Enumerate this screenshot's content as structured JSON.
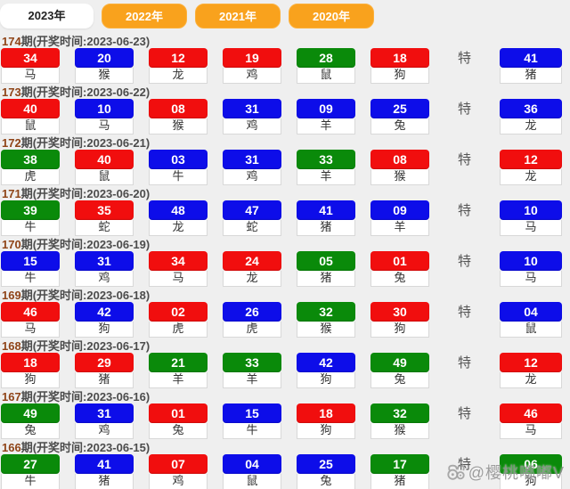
{
  "tabs": [
    {
      "label": "2023年",
      "active": true
    },
    {
      "label": "2022年",
      "active": false
    },
    {
      "label": "2021年",
      "active": false
    },
    {
      "label": "2020年",
      "active": false
    }
  ],
  "special_label": "特",
  "watermark": {
    "handle": "@樱桃嘟嘟V",
    "icon": "weibo-face-icon"
  },
  "colors": {
    "red": "#f10e0e",
    "blue": "#0d0de9",
    "green": "#0a8a0a",
    "tab_orange": "#f9a21d"
  },
  "draws": [
    {
      "period_num": "174",
      "period_suffix": "期(开奖时间:2023-06-23)",
      "numbers": [
        {
          "num": "34",
          "color": "red",
          "zodiac": "马"
        },
        {
          "num": "20",
          "color": "blue",
          "zodiac": "猴"
        },
        {
          "num": "12",
          "color": "red",
          "zodiac": "龙"
        },
        {
          "num": "19",
          "color": "red",
          "zodiac": "鸡"
        },
        {
          "num": "28",
          "color": "green",
          "zodiac": "鼠"
        },
        {
          "num": "18",
          "color": "red",
          "zodiac": "狗"
        }
      ],
      "special": {
        "num": "41",
        "color": "blue",
        "zodiac": "猪"
      }
    },
    {
      "period_num": "173",
      "period_suffix": "期(开奖时间:2023-06-22)",
      "numbers": [
        {
          "num": "40",
          "color": "red",
          "zodiac": "鼠"
        },
        {
          "num": "10",
          "color": "blue",
          "zodiac": "马"
        },
        {
          "num": "08",
          "color": "red",
          "zodiac": "猴"
        },
        {
          "num": "31",
          "color": "blue",
          "zodiac": "鸡"
        },
        {
          "num": "09",
          "color": "blue",
          "zodiac": "羊"
        },
        {
          "num": "25",
          "color": "blue",
          "zodiac": "兔"
        }
      ],
      "special": {
        "num": "36",
        "color": "blue",
        "zodiac": "龙"
      }
    },
    {
      "period_num": "172",
      "period_suffix": "期(开奖时间:2023-06-21)",
      "numbers": [
        {
          "num": "38",
          "color": "green",
          "zodiac": "虎"
        },
        {
          "num": "40",
          "color": "red",
          "zodiac": "鼠"
        },
        {
          "num": "03",
          "color": "blue",
          "zodiac": "牛"
        },
        {
          "num": "31",
          "color": "blue",
          "zodiac": "鸡"
        },
        {
          "num": "33",
          "color": "green",
          "zodiac": "羊"
        },
        {
          "num": "08",
          "color": "red",
          "zodiac": "猴"
        }
      ],
      "special": {
        "num": "12",
        "color": "red",
        "zodiac": "龙"
      }
    },
    {
      "period_num": "171",
      "period_suffix": "期(开奖时间:2023-06-20)",
      "numbers": [
        {
          "num": "39",
          "color": "green",
          "zodiac": "牛"
        },
        {
          "num": "35",
          "color": "red",
          "zodiac": "蛇"
        },
        {
          "num": "48",
          "color": "blue",
          "zodiac": "龙"
        },
        {
          "num": "47",
          "color": "blue",
          "zodiac": "蛇"
        },
        {
          "num": "41",
          "color": "blue",
          "zodiac": "猪"
        },
        {
          "num": "09",
          "color": "blue",
          "zodiac": "羊"
        }
      ],
      "special": {
        "num": "10",
        "color": "blue",
        "zodiac": "马"
      }
    },
    {
      "period_num": "170",
      "period_suffix": "期(开奖时间:2023-06-19)",
      "numbers": [
        {
          "num": "15",
          "color": "blue",
          "zodiac": "牛"
        },
        {
          "num": "31",
          "color": "blue",
          "zodiac": "鸡"
        },
        {
          "num": "34",
          "color": "red",
          "zodiac": "马"
        },
        {
          "num": "24",
          "color": "red",
          "zodiac": "龙"
        },
        {
          "num": "05",
          "color": "green",
          "zodiac": "猪"
        },
        {
          "num": "01",
          "color": "red",
          "zodiac": "兔"
        }
      ],
      "special": {
        "num": "10",
        "color": "blue",
        "zodiac": "马"
      }
    },
    {
      "period_num": "169",
      "period_suffix": "期(开奖时间:2023-06-18)",
      "numbers": [
        {
          "num": "46",
          "color": "red",
          "zodiac": "马"
        },
        {
          "num": "42",
          "color": "blue",
          "zodiac": "狗"
        },
        {
          "num": "02",
          "color": "red",
          "zodiac": "虎"
        },
        {
          "num": "26",
          "color": "blue",
          "zodiac": "虎"
        },
        {
          "num": "32",
          "color": "green",
          "zodiac": "猴"
        },
        {
          "num": "30",
          "color": "red",
          "zodiac": "狗"
        }
      ],
      "special": {
        "num": "04",
        "color": "blue",
        "zodiac": "鼠"
      }
    },
    {
      "period_num": "168",
      "period_suffix": "期(开奖时间:2023-06-17)",
      "numbers": [
        {
          "num": "18",
          "color": "red",
          "zodiac": "狗"
        },
        {
          "num": "29",
          "color": "red",
          "zodiac": "猪"
        },
        {
          "num": "21",
          "color": "green",
          "zodiac": "羊"
        },
        {
          "num": "33",
          "color": "green",
          "zodiac": "羊"
        },
        {
          "num": "42",
          "color": "blue",
          "zodiac": "狗"
        },
        {
          "num": "49",
          "color": "green",
          "zodiac": "兔"
        }
      ],
      "special": {
        "num": "12",
        "color": "red",
        "zodiac": "龙"
      }
    },
    {
      "period_num": "167",
      "period_suffix": "期(开奖时间:2023-06-16)",
      "numbers": [
        {
          "num": "49",
          "color": "green",
          "zodiac": "兔"
        },
        {
          "num": "31",
          "color": "blue",
          "zodiac": "鸡"
        },
        {
          "num": "01",
          "color": "red",
          "zodiac": "兔"
        },
        {
          "num": "15",
          "color": "blue",
          "zodiac": "牛"
        },
        {
          "num": "18",
          "color": "red",
          "zodiac": "狗"
        },
        {
          "num": "32",
          "color": "green",
          "zodiac": "猴"
        }
      ],
      "special": {
        "num": "46",
        "color": "red",
        "zodiac": "马"
      }
    },
    {
      "period_num": "166",
      "period_suffix": "期(开奖时间:2023-06-15)",
      "numbers": [
        {
          "num": "27",
          "color": "green",
          "zodiac": "牛"
        },
        {
          "num": "41",
          "color": "blue",
          "zodiac": "猪"
        },
        {
          "num": "07",
          "color": "red",
          "zodiac": "鸡"
        },
        {
          "num": "04",
          "color": "blue",
          "zodiac": "鼠"
        },
        {
          "num": "25",
          "color": "blue",
          "zodiac": "兔"
        },
        {
          "num": "17",
          "color": "green",
          "zodiac": "猪"
        }
      ],
      "special": {
        "num": "06",
        "color": "green",
        "zodiac": "狗"
      }
    }
  ]
}
